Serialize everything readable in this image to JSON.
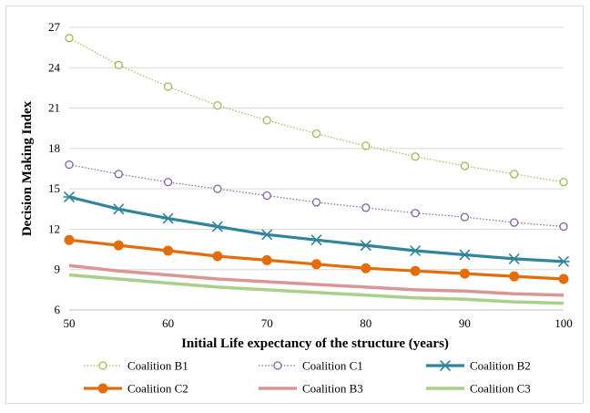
{
  "chart_data": {
    "type": "line",
    "title": "",
    "xlabel": "Initial Life expectancy of the structure (years)",
    "ylabel": "Decision Making Index",
    "xlim": [
      50,
      100
    ],
    "ylim": [
      6,
      27
    ],
    "xticks": [
      50,
      60,
      70,
      80,
      90,
      100
    ],
    "yticks": [
      6,
      9,
      12,
      15,
      18,
      21,
      24,
      27
    ],
    "grid": "horizontal",
    "legend_position": "bottom",
    "x": [
      50,
      55,
      60,
      65,
      70,
      75,
      80,
      85,
      90,
      95,
      100
    ],
    "series": [
      {
        "name": "Coalition B1",
        "color": "#9bbb59",
        "marker": "open-circle",
        "line": "dotted",
        "values": [
          26.2,
          24.2,
          22.6,
          21.2,
          20.1,
          19.1,
          18.2,
          17.4,
          16.7,
          16.1,
          15.5
        ]
      },
      {
        "name": "Coalition C1",
        "color": "#8064a2",
        "marker": "open-circle",
        "line": "dotted",
        "values": [
          16.8,
          16.1,
          15.5,
          15.0,
          14.5,
          14.0,
          13.6,
          13.2,
          12.9,
          12.5,
          12.2
        ]
      },
      {
        "name": "Coalition B2",
        "color": "#31849b",
        "marker": "asterisk",
        "line": "solid",
        "values": [
          14.4,
          13.5,
          12.8,
          12.2,
          11.6,
          11.2,
          10.8,
          10.4,
          10.1,
          9.8,
          9.6
        ]
      },
      {
        "name": "Coalition C2",
        "color": "#e46c0a",
        "marker": "filled-circle",
        "line": "solid",
        "values": [
          11.2,
          10.8,
          10.4,
          10.0,
          9.7,
          9.4,
          9.1,
          8.9,
          8.7,
          8.5,
          8.3
        ]
      },
      {
        "name": "Coalition B3",
        "color": "#d99694",
        "marker": "none",
        "line": "solid",
        "values": [
          9.3,
          8.9,
          8.6,
          8.3,
          8.1,
          7.9,
          7.7,
          7.5,
          7.4,
          7.2,
          7.1
        ]
      },
      {
        "name": "Coalition C3",
        "color": "#a9cf8a",
        "marker": "none",
        "line": "solid",
        "values": [
          8.6,
          8.3,
          8.0,
          7.7,
          7.5,
          7.3,
          7.1,
          6.9,
          6.8,
          6.6,
          6.5
        ]
      }
    ]
  }
}
